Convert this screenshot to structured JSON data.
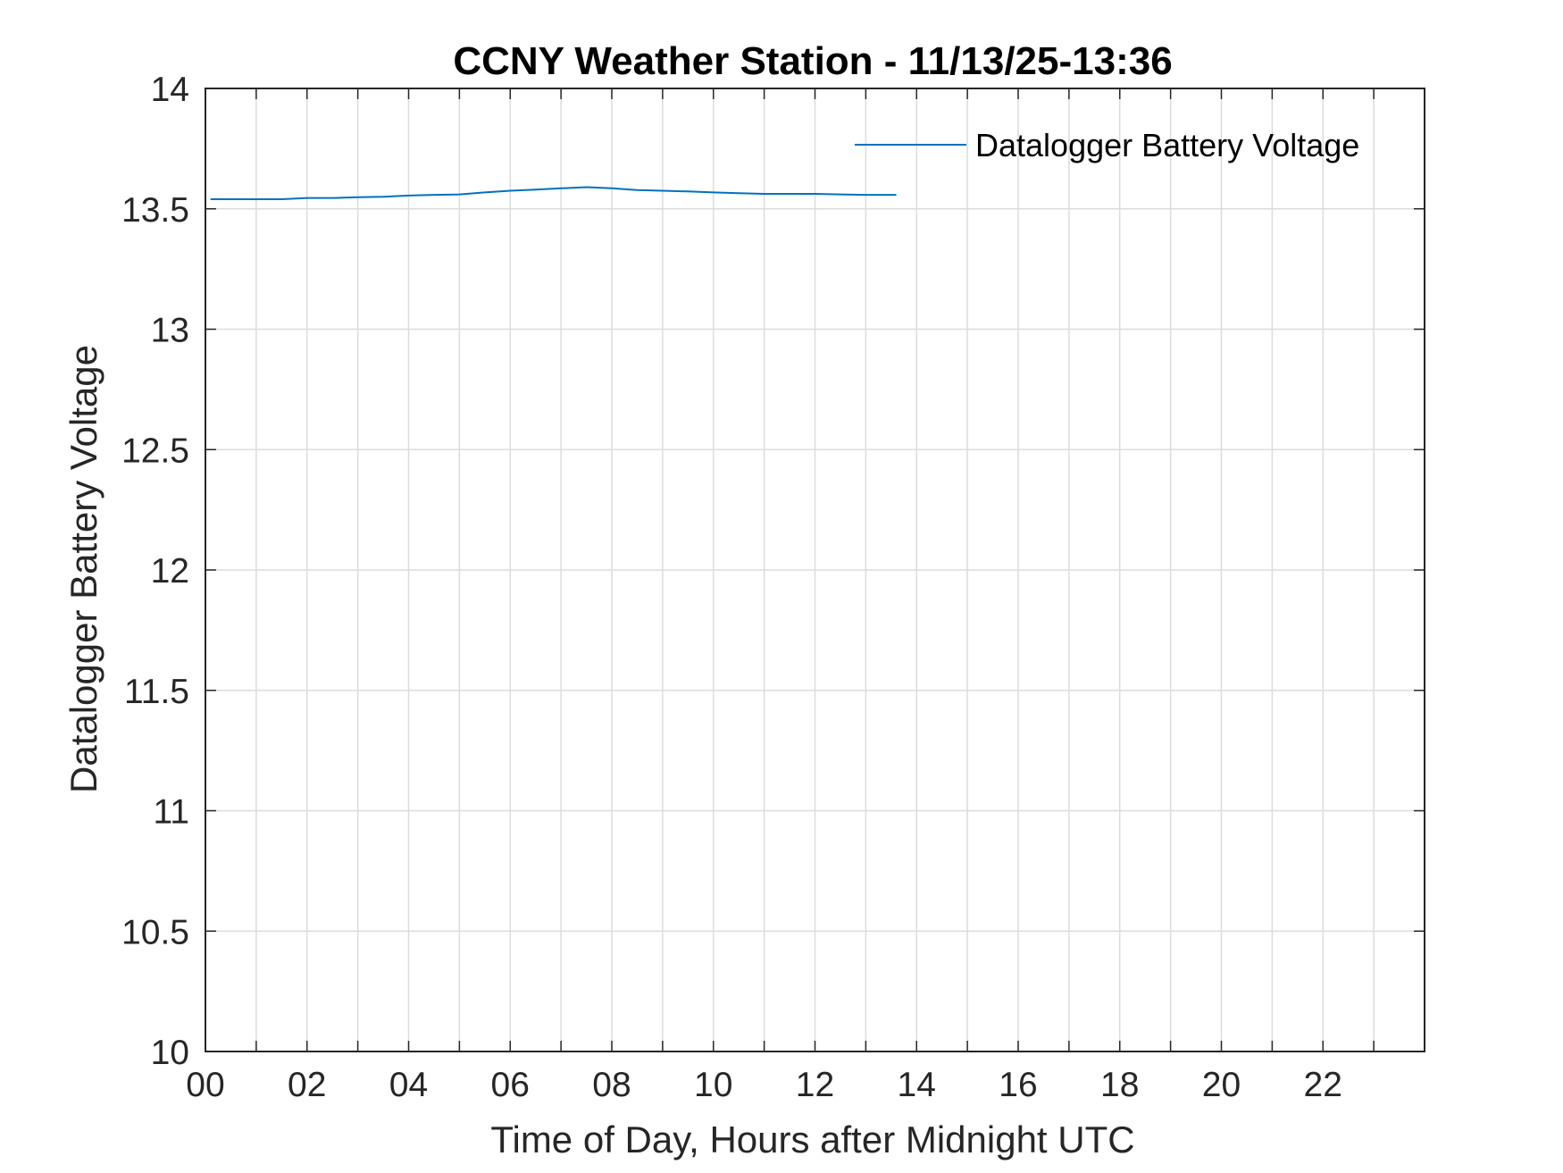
{
  "chart_data": {
    "type": "line",
    "title": "CCNY Weather Station - 11/13/25-13:36",
    "xlabel": "Time of Day, Hours after Midnight UTC",
    "ylabel": "Datalogger Battery Voltage",
    "xlim": [
      0,
      24
    ],
    "ylim": [
      10,
      14
    ],
    "x_ticks": [
      0,
      2,
      4,
      6,
      8,
      10,
      12,
      14,
      16,
      18,
      20,
      22
    ],
    "x_tick_labels": [
      "00",
      "02",
      "04",
      "06",
      "08",
      "10",
      "12",
      "14",
      "16",
      "18",
      "20",
      "22"
    ],
    "y_ticks": [
      10,
      10.5,
      11,
      11.5,
      12,
      12.5,
      13,
      13.5,
      14
    ],
    "y_tick_labels": [
      "10",
      "10.5",
      "11",
      "11.5",
      "12",
      "12.5",
      "13",
      "13.5",
      "14"
    ],
    "grid": true,
    "legend_position": "top-right",
    "series": [
      {
        "name": "Datalogger Battery Voltage",
        "color": "#0072BD",
        "x": [
          0.1,
          0.5,
          1.0,
          1.5,
          2.0,
          2.5,
          3.0,
          3.5,
          4.0,
          4.5,
          5.0,
          5.5,
          6.0,
          6.5,
          7.0,
          7.5,
          8.0,
          8.5,
          9.0,
          9.5,
          10.0,
          10.5,
          11.0,
          11.5,
          12.0,
          12.5,
          13.0,
          13.6
        ],
        "y": [
          13.54,
          13.54,
          13.54,
          13.54,
          13.545,
          13.545,
          13.548,
          13.55,
          13.555,
          13.558,
          13.56,
          13.568,
          13.575,
          13.58,
          13.585,
          13.59,
          13.585,
          13.578,
          13.575,
          13.572,
          13.568,
          13.565,
          13.562,
          13.562,
          13.562,
          13.56,
          13.558,
          13.558
        ]
      }
    ]
  }
}
